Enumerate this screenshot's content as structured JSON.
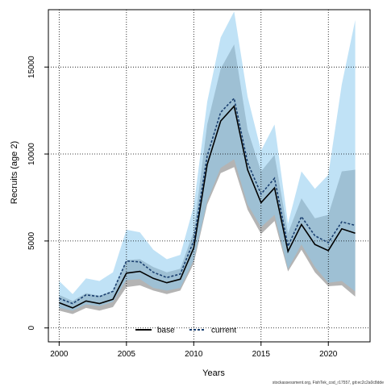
{
  "chart_data": {
    "type": "line",
    "xlabel": "Years",
    "ylabel": "Recruits (age 2)",
    "xlim": [
      1999.2,
      2023.1
    ],
    "ylim": [
      -800,
      18300
    ],
    "x_ticks": [
      2000,
      2005,
      2010,
      2015,
      2020
    ],
    "y_ticks": [
      0,
      5000,
      10000,
      15000
    ],
    "grid": true,
    "legend_position": "bottom-center",
    "x": [
      2000,
      2001,
      2002,
      2003,
      2004,
      2005,
      2006,
      2007,
      2008,
      2009,
      2010,
      2011,
      2012,
      2013,
      2014,
      2015,
      2016,
      2017,
      2018,
      2019,
      2020,
      2021,
      2022
    ],
    "series": [
      {
        "name": "base",
        "style": "solid",
        "line_color": "#000000",
        "band_color": "#8c8c8c",
        "values": [
          1450,
          1150,
          1550,
          1400,
          1650,
          3150,
          3250,
          2850,
          2600,
          2800,
          4600,
          9400,
          11900,
          12750,
          9100,
          7200,
          8050,
          4400,
          5950,
          4800,
          4450,
          5700,
          5450
        ],
        "lower": [
          1000,
          800,
          1150,
          1000,
          1200,
          2350,
          2450,
          2150,
          1950,
          2150,
          3700,
          7100,
          8900,
          9250,
          6800,
          5400,
          6150,
          3250,
          4500,
          3200,
          2400,
          2450,
          1800
        ],
        "upper": [
          1900,
          1550,
          2000,
          1850,
          2150,
          3900,
          3950,
          3500,
          3200,
          3400,
          5550,
          11700,
          14900,
          16300,
          11400,
          9000,
          9950,
          5450,
          7450,
          6300,
          6500,
          9000,
          9100
        ]
      },
      {
        "name": "current",
        "style": "dashed",
        "line_color": "#1a3f6f",
        "band_color": "#8ccbef",
        "values": [
          1700,
          1400,
          1900,
          1800,
          2100,
          3850,
          3800,
          3200,
          2900,
          3100,
          5000,
          9900,
          12400,
          13200,
          9500,
          7700,
          8600,
          4700,
          6400,
          5300,
          4900,
          6100,
          5900
        ],
        "lower": [
          1150,
          1000,
          1350,
          1250,
          1500,
          2750,
          2800,
          2300,
          2150,
          2300,
          3900,
          7300,
          9200,
          9700,
          7100,
          5800,
          6500,
          3400,
          4800,
          3500,
          2600,
          2700,
          2100
        ],
        "upper": [
          2700,
          1950,
          2850,
          2700,
          3200,
          5650,
          5500,
          4500,
          3950,
          4200,
          7000,
          13000,
          16700,
          18200,
          13300,
          10200,
          11700,
          6000,
          9000,
          8000,
          8800,
          14000,
          17700
        ]
      }
    ]
  },
  "footer_text": "stockassessment.org, FishTek_cod_r17557, git:ec2c2a0c8dde"
}
